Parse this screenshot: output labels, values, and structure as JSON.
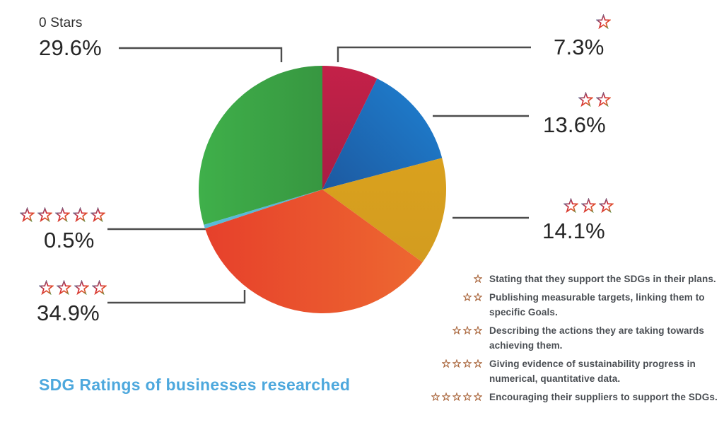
{
  "title": {
    "text": "SDG Ratings of businesses researched",
    "color": "#4da8dd"
  },
  "chart_data": {
    "type": "pie",
    "title": "SDG Ratings of businesses researched",
    "unit": "%",
    "start_angle_deg": 0,
    "direction": "clockwise",
    "legend_position": "bottom-right",
    "slices": [
      {
        "label": "1 star",
        "stars": 1,
        "value": 7.3,
        "display": "7.3%",
        "color_outer": "#c42148",
        "color_inner": "#8c1a40",
        "shade_from": "N",
        "shade_to": "S"
      },
      {
        "label": "2 stars",
        "stars": 2,
        "value": 13.6,
        "display": "13.6%",
        "color_outer": "#1e78c7",
        "color_inner": "#1b3a78",
        "shade_from": "NE",
        "shade_to": "SW"
      },
      {
        "label": "3 stars",
        "stars": 3,
        "value": 14.1,
        "display": "14.1%",
        "color_outer": "#e0a51d",
        "color_inner": "#cf9a20",
        "shade_from": "N",
        "shade_to": "S"
      },
      {
        "label": "4 stars",
        "stars": 4,
        "value": 34.9,
        "display": "34.9%",
        "color_outer": "#e63f2b",
        "color_inner": "#ee6c31",
        "shade_from": "W",
        "shade_to": "E"
      },
      {
        "label": "5 stars",
        "stars": 5,
        "value": 0.5,
        "display": "0.5%",
        "color_outer": "#5bbcd9",
        "color_inner": "#4aa8cc",
        "shade_from": "W",
        "shade_to": "E"
      },
      {
        "label": "0 Stars",
        "stars": 0,
        "value": 29.6,
        "display": "29.6%",
        "color_outer": "#3fb04a",
        "color_inner": "#2f7d37",
        "shade_from": "W",
        "shade_to": "E"
      }
    ]
  },
  "callouts": {
    "zero": {
      "label": "0 Stars",
      "pct": "29.6%",
      "stars": 0
    },
    "one": {
      "pct": "7.3%",
      "stars": 1
    },
    "two": {
      "pct": "13.6%",
      "stars": 2
    },
    "three": {
      "pct": "14.1%",
      "stars": 3
    },
    "five": {
      "pct": "0.5%",
      "stars": 5
    },
    "four": {
      "pct": "34.9%",
      "stars": 4
    }
  },
  "legend": {
    "items": [
      {
        "stars": 1,
        "text": "Stating that they support the SDGs in their plans."
      },
      {
        "stars": 2,
        "text": "Publishing measurable targets, linking them to specific Goals."
      },
      {
        "stars": 3,
        "text": "Describing the actions they are taking towards achieving them."
      },
      {
        "stars": 4,
        "text": "Giving evidence of sustainability progress in numerical, quantitative data."
      },
      {
        "stars": 5,
        "text": "Encouraging their suppliers to support the SDGs."
      }
    ]
  },
  "style": {
    "leader_line_color": "#4c4c4c",
    "text_color": "#262626",
    "legend_text_color": "#4a4e53",
    "legend_star_color": "#a9653b",
    "title_color": "#4da8dd"
  }
}
